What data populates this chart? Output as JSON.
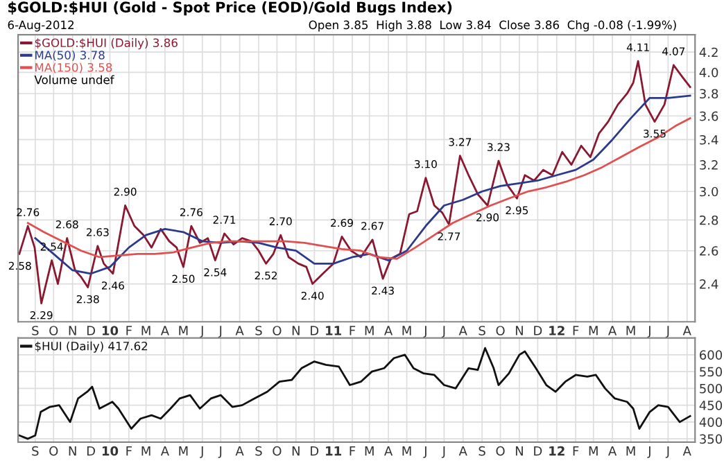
{
  "chart_data": [
    {
      "type": "line",
      "title": "$GOLD:$HUI (Gold - Spot Price (EOD)/Gold Bugs Index)",
      "subtitle": "6-Aug-2012",
      "log": true,
      "grid": true,
      "legend": "top left",
      "annotations": [
        "Open 3.85  High 3.88  Low 3.84  Close 3.86  Chg -0.08 (-1.99%)",
        "Volume undef",
        {
          "text": "2.58",
          "x": "2009-08-07",
          "y": 2.58
        },
        {
          "text": "2.76",
          "x": "2009-08-20",
          "y": 2.76
        },
        {
          "text": "2.29",
          "x": "2009-09-11",
          "y": 2.29
        },
        {
          "text": "2.54",
          "x": "2009-09-28",
          "y": 2.54
        },
        {
          "text": "2.68",
          "x": "2009-10-23",
          "y": 2.68
        },
        {
          "text": "2.38",
          "x": "2009-11-26",
          "y": 2.38
        },
        {
          "text": "2.63",
          "x": "2009-12-12",
          "y": 2.63
        },
        {
          "text": "2.46",
          "x": "2010-01-06",
          "y": 2.46
        },
        {
          "text": "2.90",
          "x": "2010-01-26",
          "y": 2.9
        },
        {
          "text": "2.50",
          "x": "2010-05-01",
          "y": 2.5
        },
        {
          "text": "2.76",
          "x": "2010-05-14",
          "y": 2.76
        },
        {
          "text": "2.54",
          "x": "2010-06-22",
          "y": 2.54
        },
        {
          "text": "2.71",
          "x": "2010-07-07",
          "y": 2.71
        },
        {
          "text": "2.52",
          "x": "2010-09-13",
          "y": 2.52
        },
        {
          "text": "2.70",
          "x": "2010-10-07",
          "y": 2.7
        },
        {
          "text": "2.40",
          "x": "2010-11-28",
          "y": 2.4
        },
        {
          "text": "2.69",
          "x": "2011-01-15",
          "y": 2.69
        },
        {
          "text": "2.67",
          "x": "2011-03-06",
          "y": 2.67
        },
        {
          "text": "2.43",
          "x": "2011-03-23",
          "y": 2.43
        },
        {
          "text": "3.10",
          "x": "2011-06-01",
          "y": 3.1
        },
        {
          "text": "2.77",
          "x": "2011-07-09",
          "y": 2.77
        },
        {
          "text": "3.27",
          "x": "2011-07-27",
          "y": 3.27
        },
        {
          "text": "2.90",
          "x": "2011-09-10",
          "y": 2.9
        },
        {
          "text": "3.23",
          "x": "2011-09-28",
          "y": 3.23
        },
        {
          "text": "2.95",
          "x": "2011-10-28",
          "y": 2.95
        },
        {
          "text": "4.11",
          "x": "2012-05-13",
          "y": 4.11
        },
        {
          "text": "3.55",
          "x": "2012-06-09",
          "y": 3.55
        },
        {
          "text": "4.07",
          "x": "2012-07-10",
          "y": 4.07
        }
      ],
      "xlim": [
        "2009-08-04",
        "2012-08-14"
      ],
      "xticks": [
        {
          "value": "2009-09",
          "label": "S"
        },
        {
          "value": "2009-10",
          "label": "O"
        },
        {
          "value": "2009-11",
          "label": "N"
        },
        {
          "value": "2009-12",
          "label": "D"
        },
        {
          "value": "2010-01",
          "label": "10"
        },
        {
          "value": "2010-02",
          "label": "F"
        },
        {
          "value": "2010-03",
          "label": "M"
        },
        {
          "value": "2010-04",
          "label": "A"
        },
        {
          "value": "2010-05",
          "label": "M"
        },
        {
          "value": "2010-06",
          "label": "J"
        },
        {
          "value": "2010-07",
          "label": "J"
        },
        {
          "value": "2010-08",
          "label": "A"
        },
        {
          "value": "2010-09",
          "label": "S"
        },
        {
          "value": "2010-10",
          "label": "O"
        },
        {
          "value": "2010-11",
          "label": "N"
        },
        {
          "value": "2010-12",
          "label": "D"
        },
        {
          "value": "2011-01",
          "label": "11"
        },
        {
          "value": "2011-02",
          "label": "F"
        },
        {
          "value": "2011-03",
          "label": "M"
        },
        {
          "value": "2011-04",
          "label": "A"
        },
        {
          "value": "2011-05",
          "label": "M"
        },
        {
          "value": "2011-06",
          "label": "J"
        },
        {
          "value": "2011-07",
          "label": "J"
        },
        {
          "value": "2011-08",
          "label": "A"
        },
        {
          "value": "2011-09",
          "label": "S"
        },
        {
          "value": "2011-10",
          "label": "O"
        },
        {
          "value": "2011-11",
          "label": "N"
        },
        {
          "value": "2011-12",
          "label": "D"
        },
        {
          "value": "2012-01",
          "label": "12"
        },
        {
          "value": "2012-02",
          "label": "F"
        },
        {
          "value": "2012-03",
          "label": "M"
        },
        {
          "value": "2012-04",
          "label": "A"
        },
        {
          "value": "2012-05",
          "label": "M"
        },
        {
          "value": "2012-06",
          "label": "J"
        },
        {
          "value": "2012-07",
          "label": "J"
        },
        {
          "value": "2012-08",
          "label": "A"
        }
      ],
      "ylim": [
        2.19,
        4.38
      ],
      "yticks": [
        2.4,
        2.6,
        2.8,
        {
          "value": 3,
          "label": "3.0"
        },
        3.2,
        3.4,
        3.6,
        3.8,
        {
          "value": 4,
          "label": "4.0"
        },
        4.2
      ],
      "series": [
        {
          "name": "$GOLD:$HUI (Daily) 3.86",
          "color": "#8a1830",
          "x": [
            "2009-08-06",
            "2009-08-20",
            "2009-08-31",
            "2009-09-11",
            "2009-09-28",
            "2009-10-08",
            "2009-10-23",
            "2009-11-05",
            "2009-11-15",
            "2009-11-26",
            "2009-12-12",
            "2009-12-22",
            "2010-01-06",
            "2010-01-26",
            "2010-02-10",
            "2010-02-25",
            "2010-03-10",
            "2010-03-25",
            "2010-04-08",
            "2010-04-20",
            "2010-05-01",
            "2010-05-14",
            "2010-05-28",
            "2010-06-10",
            "2010-06-22",
            "2010-07-07",
            "2010-07-22",
            "2010-08-05",
            "2010-08-20",
            "2010-09-01",
            "2010-09-13",
            "2010-09-25",
            "2010-10-07",
            "2010-10-20",
            "2010-11-05",
            "2010-11-18",
            "2010-11-28",
            "2010-12-15",
            "2011-01-01",
            "2011-01-15",
            "2011-01-30",
            "2011-02-15",
            "2011-03-06",
            "2011-03-23",
            "2011-04-05",
            "2011-04-20",
            "2011-05-05",
            "2011-05-18",
            "2011-06-01",
            "2011-06-15",
            "2011-06-28",
            "2011-07-09",
            "2011-07-27",
            "2011-08-10",
            "2011-08-25",
            "2011-09-10",
            "2011-09-28",
            "2011-10-12",
            "2011-10-28",
            "2011-11-10",
            "2011-11-25",
            "2011-12-10",
            "2011-12-25",
            "2012-01-10",
            "2012-01-25",
            "2012-02-10",
            "2012-02-25",
            "2012-03-10",
            "2012-03-25",
            "2012-04-10",
            "2012-04-25",
            "2012-05-05",
            "2012-05-13",
            "2012-05-25",
            "2012-06-09",
            "2012-06-25",
            "2012-07-10",
            "2012-07-25",
            "2012-08-06"
          ],
          "values": [
            2.58,
            2.76,
            2.62,
            2.29,
            2.54,
            2.4,
            2.68,
            2.48,
            2.44,
            2.38,
            2.63,
            2.52,
            2.46,
            2.9,
            2.76,
            2.7,
            2.62,
            2.74,
            2.66,
            2.62,
            2.5,
            2.76,
            2.65,
            2.68,
            2.54,
            2.71,
            2.64,
            2.68,
            2.66,
            2.6,
            2.52,
            2.58,
            2.7,
            2.56,
            2.52,
            2.5,
            2.4,
            2.46,
            2.52,
            2.69,
            2.6,
            2.56,
            2.67,
            2.43,
            2.55,
            2.58,
            2.84,
            2.86,
            3.1,
            2.9,
            2.85,
            2.77,
            3.27,
            3.12,
            2.98,
            2.9,
            3.23,
            3.05,
            2.95,
            3.12,
            3.08,
            3.16,
            3.12,
            3.3,
            3.2,
            3.35,
            3.26,
            3.45,
            3.55,
            3.7,
            3.8,
            3.9,
            4.11,
            3.7,
            3.55,
            3.7,
            4.07,
            3.95,
            3.86
          ]
        },
        {
          "name": "MA(50) 3.78",
          "color": "#2b3a8c",
          "x": [
            "2009-09-01",
            "2009-10-01",
            "2009-11-01",
            "2009-12-01",
            "2010-01-01",
            "2010-02-01",
            "2010-03-01",
            "2010-04-01",
            "2010-05-01",
            "2010-06-01",
            "2010-07-01",
            "2010-08-01",
            "2010-09-01",
            "2010-10-01",
            "2010-11-01",
            "2010-12-01",
            "2011-01-01",
            "2011-02-01",
            "2011-03-01",
            "2011-04-01",
            "2011-05-01",
            "2011-06-01",
            "2011-07-01",
            "2011-08-01",
            "2011-09-01",
            "2011-10-01",
            "2011-11-01",
            "2011-12-01",
            "2012-01-01",
            "2012-02-01",
            "2012-03-01",
            "2012-04-01",
            "2012-05-01",
            "2012-06-01",
            "2012-07-01",
            "2012-08-06"
          ],
          "values": [
            2.68,
            2.58,
            2.48,
            2.46,
            2.5,
            2.62,
            2.7,
            2.74,
            2.72,
            2.66,
            2.65,
            2.66,
            2.65,
            2.62,
            2.6,
            2.52,
            2.52,
            2.56,
            2.58,
            2.54,
            2.6,
            2.76,
            2.9,
            2.94,
            3.0,
            3.04,
            3.06,
            3.08,
            3.12,
            3.16,
            3.24,
            3.4,
            3.58,
            3.76,
            3.76,
            3.78
          ]
        },
        {
          "name": "MA(150) 3.58",
          "color": "#e05050",
          "x": [
            "2009-08-20",
            "2009-09-15",
            "2009-10-15",
            "2009-11-15",
            "2009-12-15",
            "2010-01-15",
            "2010-02-15",
            "2010-03-15",
            "2010-04-15",
            "2010-05-15",
            "2010-06-15",
            "2010-07-15",
            "2010-08-15",
            "2010-09-15",
            "2010-10-15",
            "2010-11-15",
            "2010-12-15",
            "2011-01-15",
            "2011-02-15",
            "2011-03-15",
            "2011-04-15",
            "2011-05-15",
            "2011-06-15",
            "2011-07-15",
            "2011-08-15",
            "2011-09-15",
            "2011-10-15",
            "2011-11-15",
            "2011-12-15",
            "2012-01-15",
            "2012-02-15",
            "2012-03-15",
            "2012-04-15",
            "2012-05-15",
            "2012-06-15",
            "2012-07-15",
            "2012-08-06"
          ],
          "values": [
            2.78,
            2.72,
            2.66,
            2.6,
            2.56,
            2.57,
            2.58,
            2.58,
            2.59,
            2.62,
            2.65,
            2.66,
            2.66,
            2.66,
            2.66,
            2.65,
            2.63,
            2.61,
            2.6,
            2.56,
            2.55,
            2.62,
            2.7,
            2.78,
            2.84,
            2.9,
            2.95,
            3.0,
            3.03,
            3.07,
            3.12,
            3.18,
            3.26,
            3.34,
            3.42,
            3.52,
            3.58
          ]
        }
      ]
    },
    {
      "type": "line",
      "grid": true,
      "legend": "top left",
      "xlim": [
        "2009-08-04",
        "2012-08-14"
      ],
      "xticks": [
        {
          "value": "2009-09",
          "label": "S"
        },
        {
          "value": "2009-10",
          "label": "O"
        },
        {
          "value": "2009-11",
          "label": "N"
        },
        {
          "value": "2009-12",
          "label": "D"
        },
        {
          "value": "2010-01",
          "label": "10"
        },
        {
          "value": "2010-02",
          "label": "F"
        },
        {
          "value": "2010-03",
          "label": "M"
        },
        {
          "value": "2010-04",
          "label": "A"
        },
        {
          "value": "2010-05",
          "label": "M"
        },
        {
          "value": "2010-06",
          "label": "J"
        },
        {
          "value": "2010-07",
          "label": "J"
        },
        {
          "value": "2010-08",
          "label": "A"
        },
        {
          "value": "2010-09",
          "label": "S"
        },
        {
          "value": "2010-10",
          "label": "O"
        },
        {
          "value": "2010-11",
          "label": "N"
        },
        {
          "value": "2010-12",
          "label": "D"
        },
        {
          "value": "2011-01",
          "label": "11"
        },
        {
          "value": "2011-02",
          "label": "F"
        },
        {
          "value": "2011-03",
          "label": "M"
        },
        {
          "value": "2011-04",
          "label": "A"
        },
        {
          "value": "2011-05",
          "label": "M"
        },
        {
          "value": "2011-06",
          "label": "J"
        },
        {
          "value": "2011-07",
          "label": "J"
        },
        {
          "value": "2011-08",
          "label": "A"
        },
        {
          "value": "2011-09",
          "label": "S"
        },
        {
          "value": "2011-10",
          "label": "O"
        },
        {
          "value": "2011-11",
          "label": "N"
        },
        {
          "value": "2011-12",
          "label": "D"
        },
        {
          "value": "2012-01",
          "label": "12"
        },
        {
          "value": "2012-02",
          "label": "F"
        },
        {
          "value": "2012-03",
          "label": "M"
        },
        {
          "value": "2012-04",
          "label": "A"
        },
        {
          "value": "2012-05",
          "label": "M"
        },
        {
          "value": "2012-06",
          "label": "J"
        },
        {
          "value": "2012-07",
          "label": "J"
        },
        {
          "value": "2012-08",
          "label": "A"
        }
      ],
      "ylim": [
        340,
        650
      ],
      "yticks": [
        350,
        400,
        450,
        500,
        550,
        600
      ],
      "series": [
        {
          "name": "$HUI (Daily) 417.62",
          "color": "#111111",
          "x": [
            "2009-08-06",
            "2009-08-20",
            "2009-09-01",
            "2009-09-10",
            "2009-09-25",
            "2009-10-10",
            "2009-10-28",
            "2009-11-10",
            "2009-11-25",
            "2009-12-03",
            "2009-12-15",
            "2010-01-05",
            "2010-01-15",
            "2010-02-05",
            "2010-02-20",
            "2010-03-10",
            "2010-03-25",
            "2010-04-10",
            "2010-04-25",
            "2010-05-12",
            "2010-05-28",
            "2010-06-15",
            "2010-07-01",
            "2010-07-20",
            "2010-08-05",
            "2010-08-25",
            "2010-09-15",
            "2010-10-05",
            "2010-10-25",
            "2010-11-10",
            "2010-12-01",
            "2010-12-20",
            "2011-01-10",
            "2011-01-28",
            "2011-02-15",
            "2011-03-05",
            "2011-03-25",
            "2011-04-10",
            "2011-04-28",
            "2011-05-12",
            "2011-05-28",
            "2011-06-15",
            "2011-07-01",
            "2011-07-20",
            "2011-08-10",
            "2011-08-25",
            "2011-09-06",
            "2011-09-20",
            "2011-09-28",
            "2011-10-15",
            "2011-11-01",
            "2011-11-10",
            "2011-11-28",
            "2011-12-15",
            "2011-12-30",
            "2012-01-15",
            "2012-02-01",
            "2012-02-20",
            "2012-03-05",
            "2012-03-20",
            "2012-04-05",
            "2012-04-25",
            "2012-05-05",
            "2012-05-15",
            "2012-06-01",
            "2012-06-15",
            "2012-07-01",
            "2012-07-20",
            "2012-08-06"
          ],
          "values": [
            360,
            350,
            360,
            430,
            445,
            450,
            400,
            470,
            490,
            505,
            440,
            460,
            440,
            380,
            410,
            420,
            410,
            440,
            470,
            480,
            440,
            470,
            480,
            445,
            450,
            470,
            490,
            520,
            525,
            560,
            580,
            570,
            565,
            510,
            520,
            550,
            560,
            590,
            600,
            560,
            545,
            540,
            510,
            500,
            560,
            555,
            620,
            560,
            510,
            545,
            600,
            610,
            560,
            510,
            490,
            520,
            540,
            535,
            540,
            500,
            470,
            460,
            440,
            380,
            430,
            450,
            445,
            400,
            417.62
          ]
        }
      ]
    }
  ]
}
